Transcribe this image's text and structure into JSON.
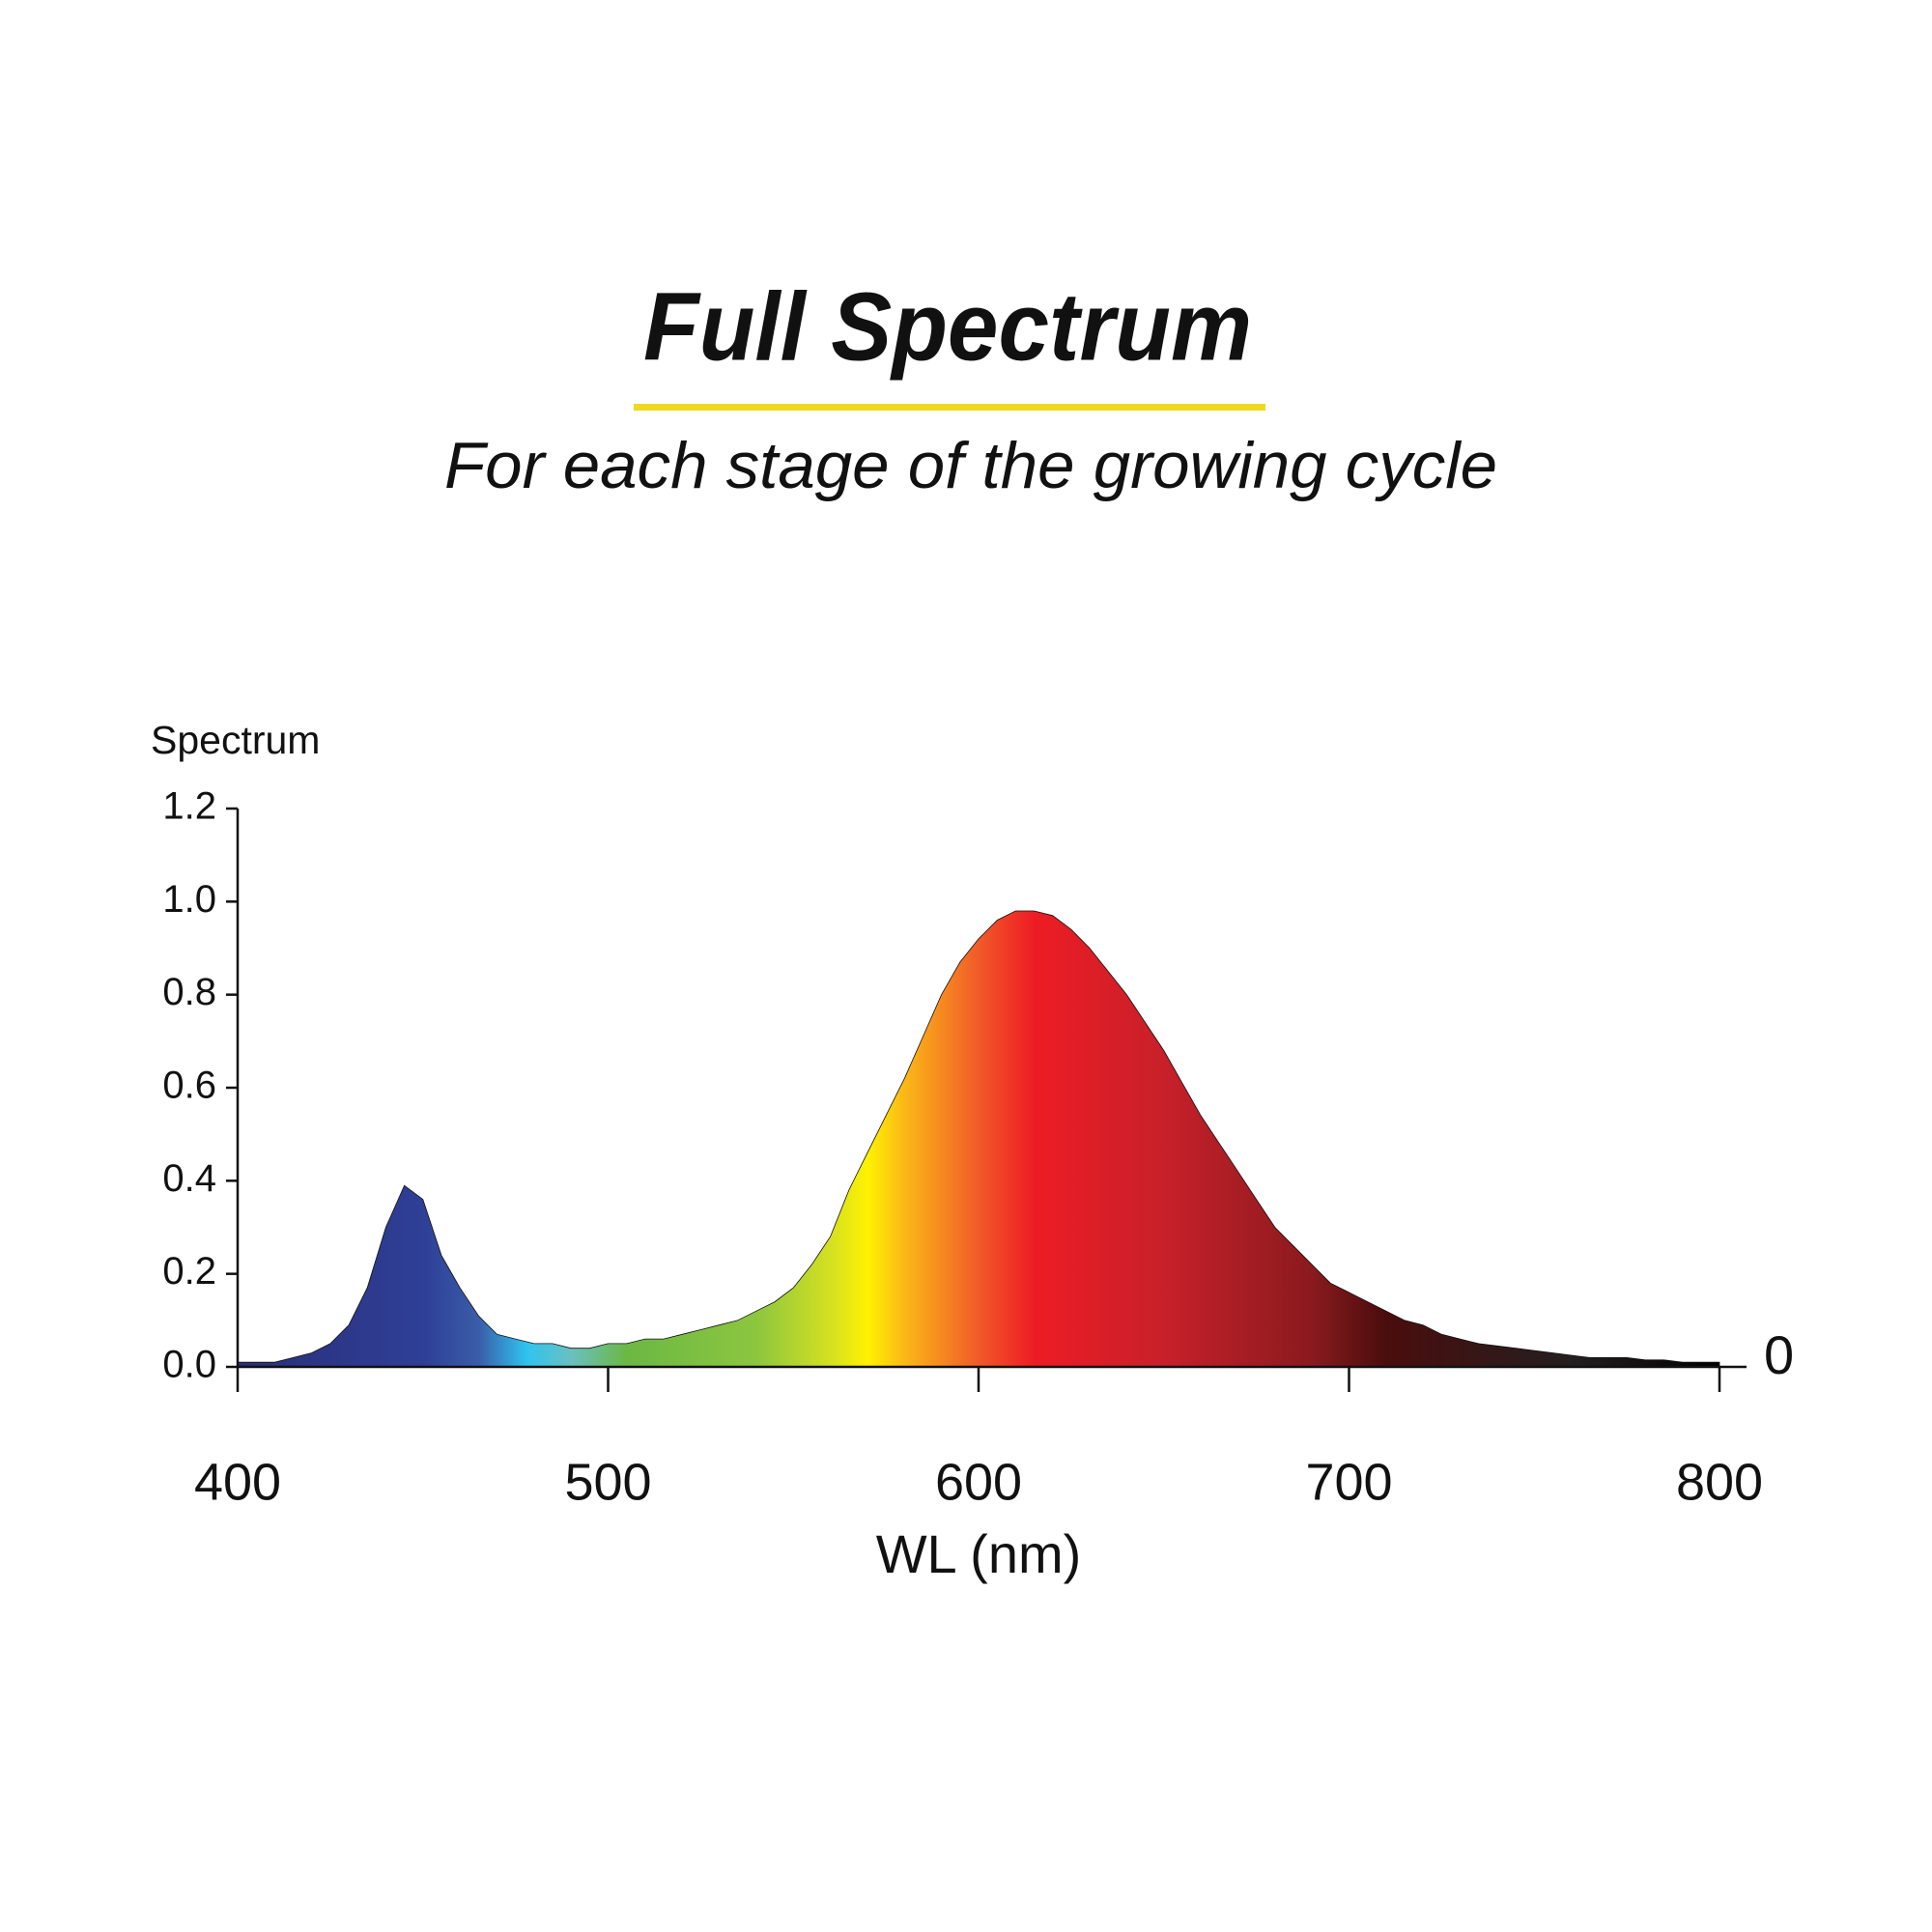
{
  "chart_data": {
    "type": "area",
    "title": "Full Spectrum",
    "subtitle": "For each stage of the growing cycle",
    "title_color": "#0a9444",
    "underline_color": "#f0d820",
    "y_label": "Spectrum",
    "x_label": "WL (nm)",
    "annotation": "0",
    "x": [
      400,
      405,
      410,
      415,
      420,
      425,
      430,
      435,
      440,
      445,
      450,
      455,
      460,
      465,
      470,
      475,
      480,
      485,
      490,
      495,
      500,
      505,
      510,
      515,
      520,
      525,
      530,
      535,
      540,
      545,
      550,
      555,
      560,
      565,
      570,
      575,
      580,
      585,
      590,
      595,
      600,
      605,
      610,
      615,
      620,
      625,
      630,
      635,
      640,
      645,
      650,
      655,
      660,
      665,
      670,
      675,
      680,
      685,
      690,
      695,
      700,
      705,
      710,
      715,
      720,
      725,
      730,
      735,
      740,
      745,
      750,
      755,
      760,
      765,
      770,
      775,
      780,
      785,
      790,
      795,
      800
    ],
    "values": [
      0.01,
      0.01,
      0.01,
      0.02,
      0.03,
      0.05,
      0.09,
      0.17,
      0.3,
      0.39,
      0.36,
      0.24,
      0.17,
      0.11,
      0.07,
      0.06,
      0.05,
      0.05,
      0.04,
      0.04,
      0.05,
      0.05,
      0.06,
      0.06,
      0.07,
      0.08,
      0.09,
      0.1,
      0.12,
      0.14,
      0.17,
      0.22,
      0.28,
      0.38,
      0.46,
      0.54,
      0.62,
      0.71,
      0.8,
      0.87,
      0.92,
      0.96,
      0.98,
      0.98,
      0.97,
      0.94,
      0.9,
      0.85,
      0.8,
      0.74,
      0.68,
      0.61,
      0.54,
      0.48,
      0.42,
      0.36,
      0.3,
      0.26,
      0.22,
      0.18,
      0.16,
      0.14,
      0.12,
      0.1,
      0.09,
      0.07,
      0.06,
      0.05,
      0.045,
      0.04,
      0.035,
      0.03,
      0.025,
      0.02,
      0.02,
      0.02,
      0.015,
      0.015,
      0.01,
      0.01,
      0.01
    ],
    "fill_gradient": [
      {
        "x": 400,
        "color": "#2b2e7a"
      },
      {
        "x": 450,
        "color": "#2e3f96"
      },
      {
        "x": 465,
        "color": "#3a5ca8"
      },
      {
        "x": 478,
        "color": "#2ec4ef"
      },
      {
        "x": 490,
        "color": "#6ac0c0"
      },
      {
        "x": 505,
        "color": "#6bb844"
      },
      {
        "x": 540,
        "color": "#8cc63f"
      },
      {
        "x": 560,
        "color": "#d4e021"
      },
      {
        "x": 570,
        "color": "#fff200"
      },
      {
        "x": 580,
        "color": "#fbb817"
      },
      {
        "x": 600,
        "color": "#f15a29"
      },
      {
        "x": 615,
        "color": "#ed1c24"
      },
      {
        "x": 650,
        "color": "#c8202a"
      },
      {
        "x": 690,
        "color": "#8a1a1e"
      },
      {
        "x": 710,
        "color": "#4a0d0d"
      },
      {
        "x": 760,
        "color": "#231f20"
      },
      {
        "x": 800,
        "color": "#000000"
      }
    ],
    "xlim": [
      400,
      800
    ],
    "xticks": [
      400,
      500,
      600,
      700,
      800
    ],
    "ylim": [
      0,
      1.2
    ],
    "yticks": [
      {
        "value": 0,
        "label": "0.0"
      },
      0.2,
      0.4,
      0.6,
      0.8,
      {
        "value": 1,
        "label": "1.0"
      },
      1.2
    ]
  }
}
